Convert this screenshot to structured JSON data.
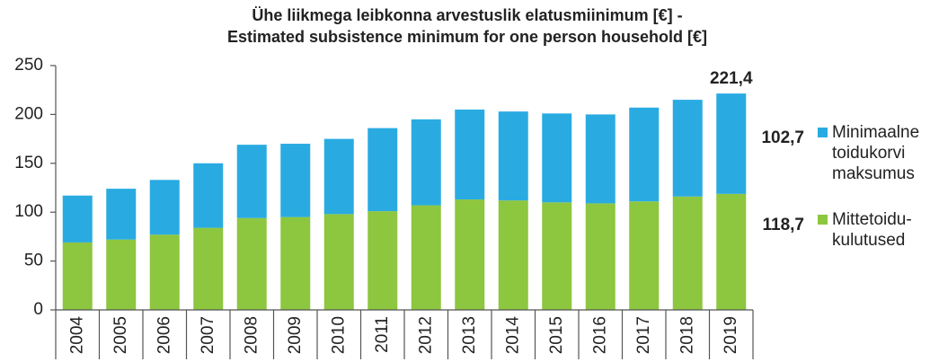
{
  "chart_data": {
    "type": "stacked_bar",
    "title": [
      "Ühe liikmega leibkonna arvestuslik elatusmiinimum [€] -",
      "Estimated subsistence minimum for one person household [€]"
    ],
    "categories": [
      "2004",
      "2005",
      "2006",
      "2007",
      "2008",
      "2009",
      "2010",
      "2011",
      "2012",
      "2013",
      "2014",
      "2015",
      "2016",
      "2017",
      "2018",
      "2019"
    ],
    "series": [
      {
        "name": "Mittetoidu- kulutused",
        "color": "#8dc63f",
        "values": [
          69,
          72,
          77,
          84,
          94,
          95,
          98,
          101,
          107,
          113,
          112,
          110,
          109,
          111,
          116,
          118.7
        ],
        "value_labels": [
          null,
          null,
          null,
          null,
          null,
          null,
          null,
          null,
          null,
          null,
          null,
          null,
          null,
          null,
          null,
          "118,7"
        ]
      },
      {
        "name": "Minimaalne toidukorvi maksumus",
        "color": "#29abe2",
        "values": [
          48,
          52,
          56,
          66,
          75,
          75,
          77,
          85,
          88,
          92,
          91,
          91,
          91,
          96,
          99,
          102.7
        ],
        "value_labels": [
          null,
          null,
          null,
          null,
          null,
          null,
          null,
          null,
          null,
          null,
          null,
          null,
          null,
          null,
          null,
          "102,7"
        ]
      }
    ],
    "annotations": [
      "221,4"
    ],
    "ylim": [
      0,
      250
    ],
    "yticks": [
      0,
      50,
      100,
      150,
      200,
      250
    ],
    "grid": false
  }
}
